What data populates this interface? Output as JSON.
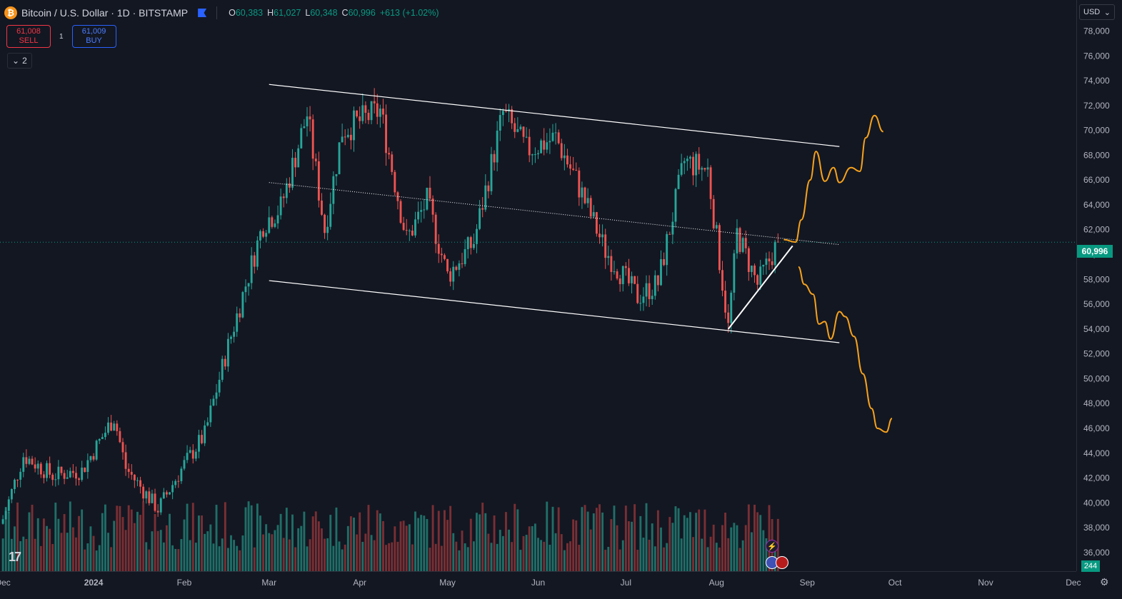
{
  "header": {
    "symbol_icon": "bitcoin-icon",
    "title": "Bitcoin / U.S. Dollar · 1D · BITSTAMP",
    "flag_icon": "flag-icon",
    "ohlc": {
      "o_key": "O",
      "o_val": "60,383",
      "h_key": "H",
      "h_val": "61,027",
      "l_key": "L",
      "l_val": "60,348",
      "c_key": "C",
      "c_val": "60,996",
      "change": "+613 (+1.02%)"
    }
  },
  "trade": {
    "sell_price": "61,008",
    "sell_label": "SELL",
    "spread": "1",
    "buy_price": "61,009",
    "buy_label": "BUY"
  },
  "indicators": {
    "collapse_count": "2"
  },
  "price_axis": {
    "currency": "USD",
    "current_price_label": "60,996",
    "volume_label": "244"
  },
  "colors": {
    "background": "#131722",
    "up": "#26a69a",
    "down": "#ef5350",
    "volume_up": "#1f6f68",
    "volume_down": "#7a2f34",
    "trendline": "#ffffff",
    "projection": "#f7a21b",
    "price_line": "#089981"
  },
  "chart_data": {
    "type": "candlestick",
    "symbol": "Bitcoin / U.S. Dollar",
    "interval": "1D",
    "exchange": "BITSTAMP",
    "y_ticks": [
      "36,000",
      "38,000",
      "40,000",
      "42,000",
      "44,000",
      "46,000",
      "48,000",
      "50,000",
      "52,000",
      "54,000",
      "56,000",
      "58,000",
      "60,000",
      "62,000",
      "64,000",
      "66,000",
      "68,000",
      "70,000",
      "72,000",
      "74,000",
      "76,000",
      "78,000"
    ],
    "ylim": [
      34500,
      80500
    ],
    "x_ticks": [
      "Dec",
      "2024",
      "Feb",
      "Mar",
      "Apr",
      "May",
      "Jun",
      "Jul",
      "Aug",
      "Sep",
      "Oct",
      "Nov",
      "Dec"
    ],
    "x_tick_dates": [
      "2023-12-01",
      "2024-01-01",
      "2024-02-01",
      "2024-03-01",
      "2024-04-01",
      "2024-05-01",
      "2024-06-01",
      "2024-07-01",
      "2024-08-01",
      "2024-09-01",
      "2024-10-01",
      "2024-11-01",
      "2024-12-01"
    ],
    "xlim": [
      "2023-11-30",
      "2024-12-02"
    ],
    "last_close": 60996,
    "trend": [
      {
        "date": "2023-12-01",
        "close": 38700
      },
      {
        "date": "2023-12-08",
        "close": 43800
      },
      {
        "date": "2023-12-18",
        "close": 42200
      },
      {
        "date": "2023-12-28",
        "close": 42600
      },
      {
        "date": "2024-01-08",
        "close": 46900
      },
      {
        "date": "2024-01-12",
        "close": 42800
      },
      {
        "date": "2024-01-23",
        "close": 39500
      },
      {
        "date": "2024-02-01",
        "close": 43100
      },
      {
        "date": "2024-02-08",
        "close": 45500
      },
      {
        "date": "2024-02-15",
        "close": 51800
      },
      {
        "date": "2024-02-28",
        "close": 62500
      },
      {
        "date": "2024-03-05",
        "close": 63800
      },
      {
        "date": "2024-03-14",
        "close": 71300
      },
      {
        "date": "2024-03-20",
        "close": 62000
      },
      {
        "date": "2024-03-26",
        "close": 70000
      },
      {
        "date": "2024-04-08",
        "close": 71600
      },
      {
        "date": "2024-04-17",
        "close": 61200
      },
      {
        "date": "2024-04-24",
        "close": 64300
      },
      {
        "date": "2024-05-01",
        "close": 58300
      },
      {
        "date": "2024-05-10",
        "close": 61000
      },
      {
        "date": "2024-05-20",
        "close": 71400
      },
      {
        "date": "2024-05-28",
        "close": 68400
      },
      {
        "date": "2024-06-07",
        "close": 69400
      },
      {
        "date": "2024-06-14",
        "close": 66000
      },
      {
        "date": "2024-06-24",
        "close": 60300
      },
      {
        "date": "2024-07-05",
        "close": 56600
      },
      {
        "date": "2024-07-12",
        "close": 57700
      },
      {
        "date": "2024-07-21",
        "close": 67500
      },
      {
        "date": "2024-07-29",
        "close": 66800
      },
      {
        "date": "2024-08-05",
        "close": 54100
      },
      {
        "date": "2024-08-08",
        "close": 61700
      },
      {
        "date": "2024-08-15",
        "close": 57600
      },
      {
        "date": "2024-08-22",
        "close": 60996
      }
    ],
    "drawings": {
      "channel_upper": [
        [
          "2024-03-01",
          73700
        ],
        [
          "2024-09-12",
          68700
        ]
      ],
      "channel_lower": [
        [
          "2024-03-01",
          57900
        ],
        [
          "2024-09-12",
          52900
        ]
      ],
      "channel_mid_dotted": [
        [
          "2024-03-01",
          65800
        ],
        [
          "2024-09-12",
          60800
        ]
      ],
      "rising_support": [
        [
          "2024-08-05",
          54000
        ],
        [
          "2024-08-27",
          60700
        ]
      ],
      "horizontal_price_line": 60996,
      "projection_bullish": [
        [
          "2024-08-24",
          61200
        ],
        [
          "2024-08-28",
          61000
        ],
        [
          "2024-08-30",
          62800
        ],
        [
          "2024-09-02",
          66000
        ],
        [
          "2024-09-04",
          68300
        ],
        [
          "2024-09-07",
          65900
        ],
        [
          "2024-09-10",
          67000
        ],
        [
          "2024-09-12",
          65800
        ],
        [
          "2024-09-16",
          67000
        ],
        [
          "2024-09-19",
          66700
        ],
        [
          "2024-09-21",
          69400
        ],
        [
          "2024-09-24",
          71200
        ],
        [
          "2024-09-27",
          69900
        ]
      ],
      "projection_bearish": [
        [
          "2024-08-29",
          59000
        ],
        [
          "2024-08-31",
          57600
        ],
        [
          "2024-09-03",
          56800
        ],
        [
          "2024-09-05",
          54400
        ],
        [
          "2024-09-07",
          54600
        ],
        [
          "2024-09-09",
          53200
        ],
        [
          "2024-09-12",
          55400
        ],
        [
          "2024-09-14",
          55000
        ],
        [
          "2024-09-17",
          53400
        ],
        [
          "2024-09-20",
          50400
        ],
        [
          "2024-09-23",
          47600
        ],
        [
          "2024-09-25",
          46000
        ],
        [
          "2024-09-28",
          45700
        ],
        [
          "2024-09-30",
          46800
        ]
      ]
    }
  }
}
